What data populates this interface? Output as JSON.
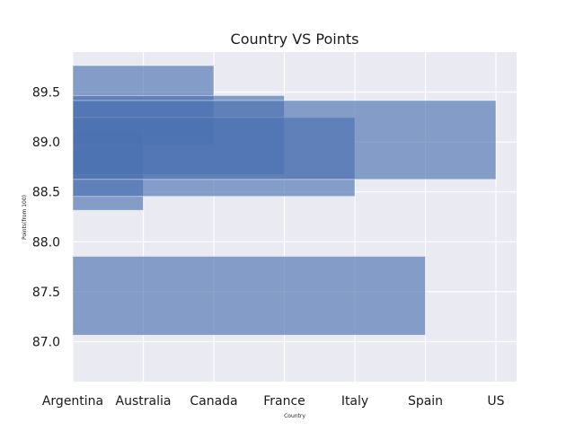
{
  "chart_data": {
    "type": "bar",
    "orientation": "horizontal-overlapping",
    "title": "Country VS Points",
    "xlabel": "Country",
    "ylabel": "Points(from 100)",
    "categories": [
      "Argentina",
      "Australia",
      "Canada",
      "France",
      "Italy",
      "Spain",
      "US"
    ],
    "ylim": [
      86.6,
      89.9
    ],
    "yticks": [
      "87.0",
      "87.5",
      "88.0",
      "88.5",
      "89.0",
      "89.5"
    ],
    "bars": [
      {
        "country": "Argentina",
        "center": 88.44,
        "value": 0.78
      },
      {
        "country": "Australia",
        "center": 88.71,
        "value": 1.55
      },
      {
        "country": "Canada",
        "center": 89.37,
        "value": 0.78
      },
      {
        "country": "France",
        "center": 89.07,
        "value": 0.78
      },
      {
        "country": "Italy",
        "center": 88.85,
        "value": 0.78
      },
      {
        "country": "Spain",
        "center": 87.46,
        "value": 0.78
      },
      {
        "country": "US",
        "center": 89.02,
        "value": 0.78
      }
    ],
    "grid": true,
    "bar_color": "#4c72b0",
    "bar_alpha": 0.65,
    "background_color": "#eaeaf2"
  }
}
